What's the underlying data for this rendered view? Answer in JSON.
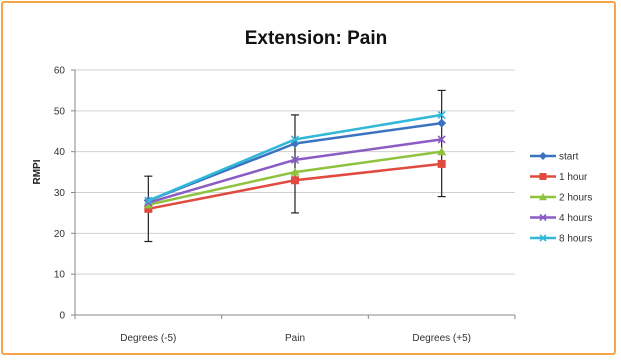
{
  "chart_data": {
    "type": "line",
    "title": "Extension: Pain",
    "xlabel": "",
    "ylabel": "RMPI",
    "categories": [
      "Degrees (-5)",
      "Pain",
      "Degrees (+5)"
    ],
    "ylim": [
      0,
      60
    ],
    "yticks": [
      0,
      10,
      20,
      30,
      40,
      50,
      60
    ],
    "grid": true,
    "legend": "right",
    "series": [
      {
        "name": "start",
        "values": [
          28,
          42,
          47
        ],
        "color": "#3b73c0",
        "marker": "diamond"
      },
      {
        "name": "1 hour",
        "values": [
          26,
          33,
          37
        ],
        "color": "#e04a3f",
        "marker": "square"
      },
      {
        "name": "2 hours",
        "values": [
          27,
          35,
          40
        ],
        "color": "#8fc23e",
        "marker": "triangle"
      },
      {
        "name": "4 hours",
        "values": [
          27.5,
          38,
          43
        ],
        "color": "#8a5cc4",
        "marker": "x"
      },
      {
        "name": "8 hours",
        "values": [
          28,
          43,
          49
        ],
        "color": "#30b8d8",
        "marker": "x"
      }
    ],
    "error_bars": {
      "color": "#222222",
      "ranges": [
        [
          18,
          34
        ],
        [
          25,
          49
        ],
        [
          29,
          55
        ]
      ]
    }
  }
}
